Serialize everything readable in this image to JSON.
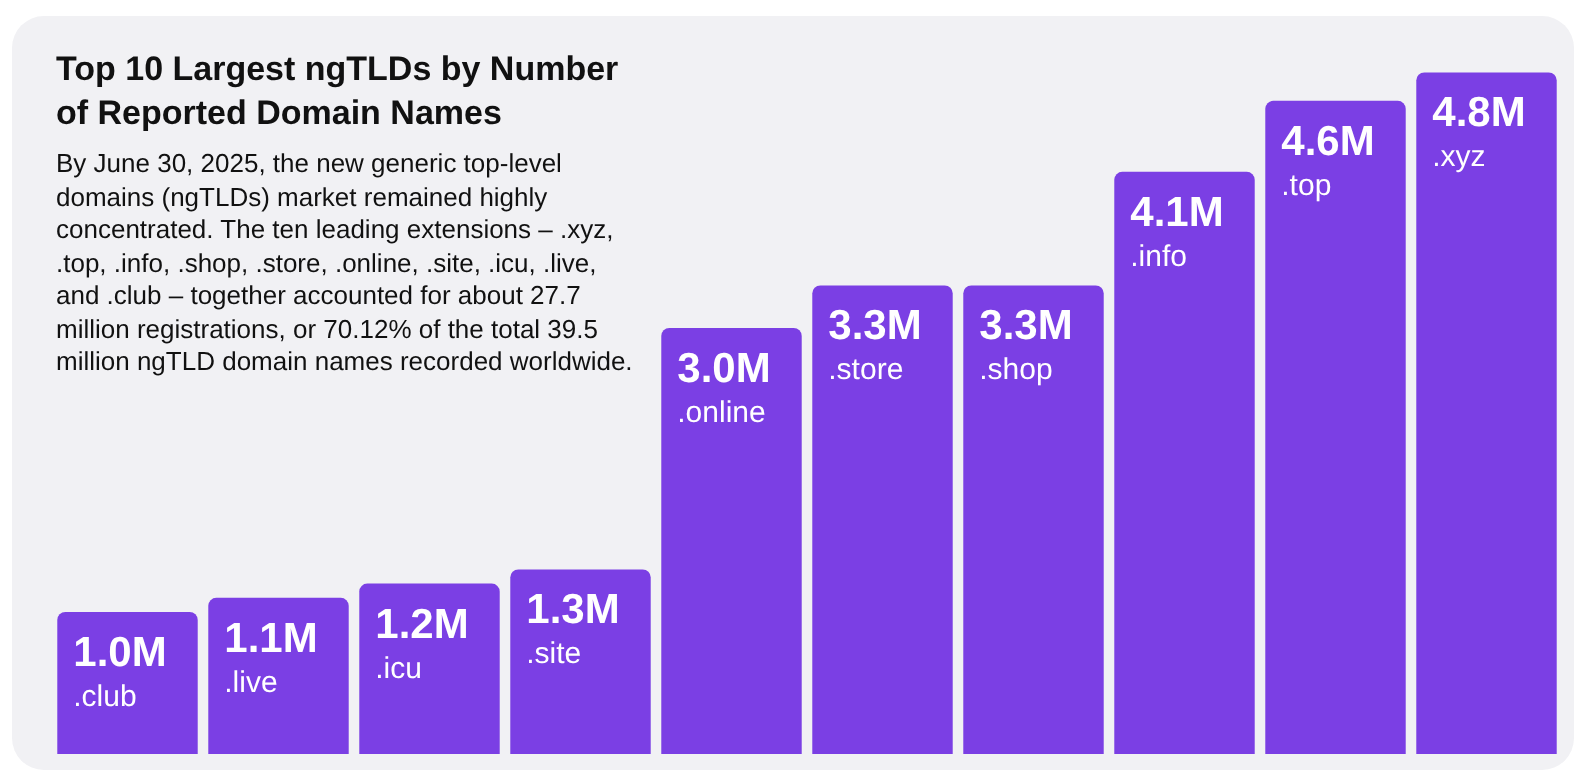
{
  "chart_data": {
    "type": "bar",
    "title": "Top 10 Largest ngTLDs by Number of Reported Domain Names",
    "annotations": [
      "By June 30, 2025, the new generic top-level domains (ngTLDs) market remained highly concentrated. The ten leading extensions – .xyz, .top, .info, .shop, .store, .online, .site, .icu, .live, and .club – together accounted for about 27.7 million registrations, or 70.12% of the total 39.5 million ngTLD domain names recorded worldwide."
    ],
    "categories": [
      ".club",
      ".live",
      ".icu",
      ".site",
      ".online",
      ".store",
      ".shop",
      ".info",
      ".top",
      ".xyz"
    ],
    "values": [
      1.0,
      1.1,
      1.2,
      1.3,
      3.0,
      3.3,
      3.3,
      4.1,
      4.6,
      4.8
    ],
    "value_labels": [
      "1.0M",
      "1.1M",
      "1.2M",
      "1.3M",
      "3.0M",
      "3.3M",
      "3.3M",
      "4.1M",
      "4.6M",
      "4.8M"
    ],
    "color": "#7b3fe4",
    "relative": false
  }
}
